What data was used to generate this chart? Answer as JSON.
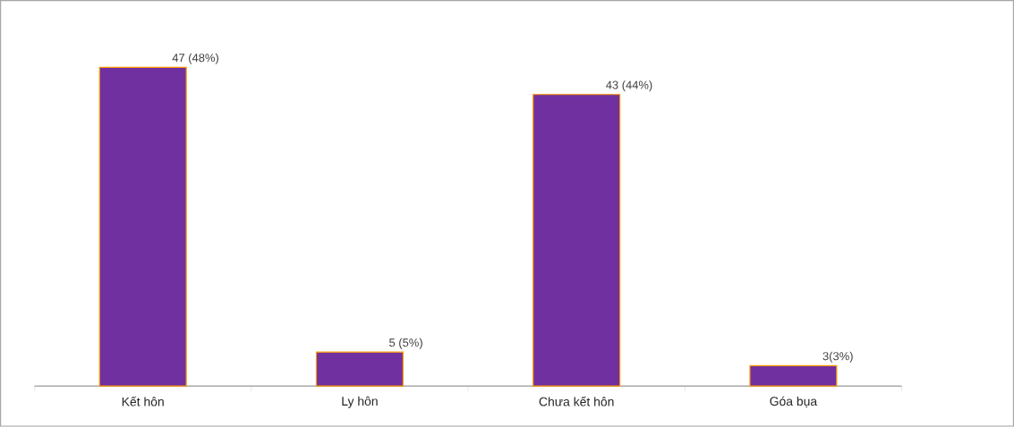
{
  "chart_data": {
    "type": "bar",
    "categories": [
      "Kết hôn",
      "Ly hôn",
      "Chưa kết hôn",
      "Góa bụa"
    ],
    "values": [
      47,
      5,
      43,
      3
    ],
    "value_labels": [
      "47 (48%)",
      "5 (5%)",
      "43 (44%)",
      "3(3%)"
    ],
    "color": "#7030a0"
  }
}
